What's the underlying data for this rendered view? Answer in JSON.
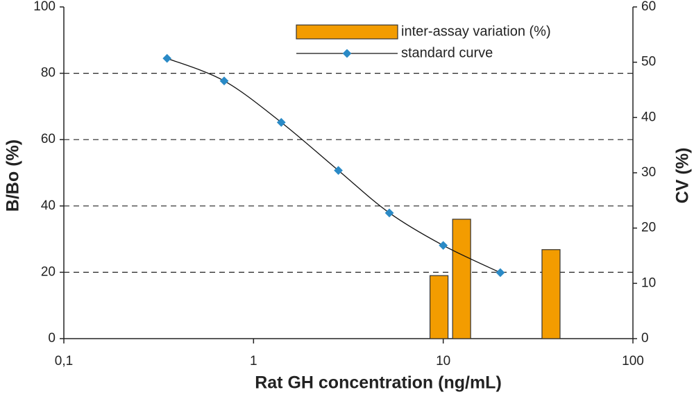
{
  "chart_data": {
    "type": "combo",
    "xlabel": "Rat GH concentration (ng/mL)",
    "ylabel": "B/Bo (%)",
    "y2label": "CV (%)",
    "xscale": "log",
    "xlim": [
      0.1,
      100
    ],
    "xticks": [
      {
        "value": 0.1,
        "label": "0,1"
      },
      1,
      10,
      100
    ],
    "ylim": [
      0,
      100
    ],
    "yticks": [
      0,
      20,
      40,
      60,
      80,
      100
    ],
    "y2lim": [
      0,
      60
    ],
    "y2ticks": [
      0,
      10,
      20,
      30,
      40,
      50,
      60
    ],
    "grid": true,
    "legend": "top",
    "series": [
      {
        "name": "inter-assay variation (%)",
        "type": "bar",
        "axis": "y2",
        "color": "#f39c00",
        "x": [
          9.5,
          12.5,
          37
        ],
        "values": [
          11.4,
          21.6,
          16.1
        ]
      },
      {
        "name": "standard curve",
        "type": "line",
        "color": "#2a8ac6",
        "line_color": "#111111",
        "x": [
          0.35,
          0.7,
          1.4,
          2.8,
          5.2,
          10,
          20
        ],
        "values": [
          84.5,
          77.7,
          65.2,
          50.7,
          37.9,
          28.1,
          19.9
        ]
      }
    ]
  }
}
